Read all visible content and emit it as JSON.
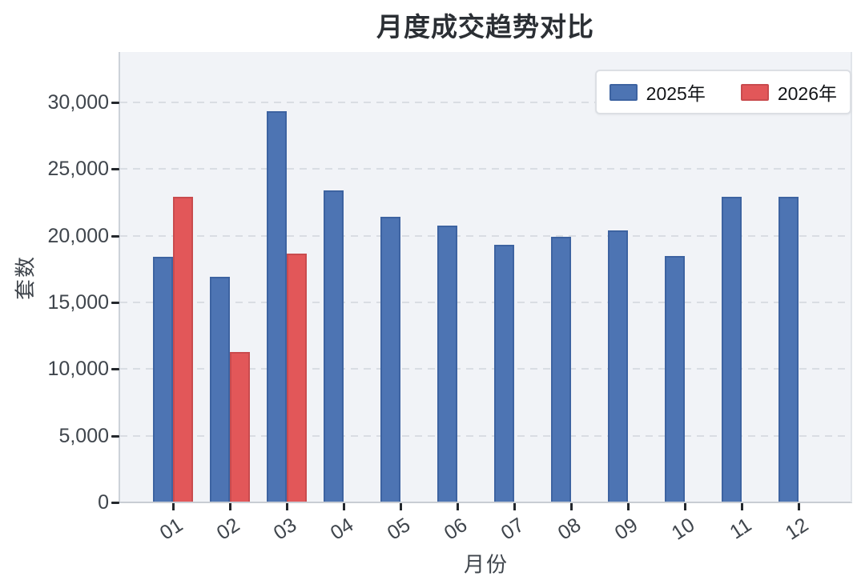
{
  "chart_data": {
    "type": "bar",
    "title": "月度成交趋势对比",
    "xlabel": "月份",
    "ylabel": "套数",
    "categories": [
      "01",
      "02",
      "03",
      "04",
      "05",
      "06",
      "07",
      "08",
      "09",
      "10",
      "11",
      "12"
    ],
    "series": [
      {
        "name": "2025年",
        "color": "#4d74b3",
        "edge_color": "#3d63a1",
        "values": [
          18400,
          16900,
          29350,
          23400,
          21400,
          20750,
          19300,
          19900,
          20400,
          18500,
          22900,
          22900
        ]
      },
      {
        "name": "2026年",
        "color": "#e25759",
        "edge_color": "#c94b4e",
        "values": [
          22900,
          11300,
          18650,
          null,
          null,
          null,
          null,
          null,
          null,
          null,
          null,
          null
        ]
      }
    ],
    "y_ticks": [
      0,
      5000,
      10000,
      15000,
      20000,
      25000,
      30000
    ],
    "ylim": [
      0,
      33780
    ],
    "grid": "horizontal-dashed",
    "legend_position": "top-right",
    "colors": {
      "plot_background": "#f1f3f7",
      "figure_background": "#ffffff",
      "grid_color": "#d9dde3",
      "tick_color": "#24282d",
      "label_color": "#3f454c",
      "title_color": "#2b2f34"
    }
  }
}
